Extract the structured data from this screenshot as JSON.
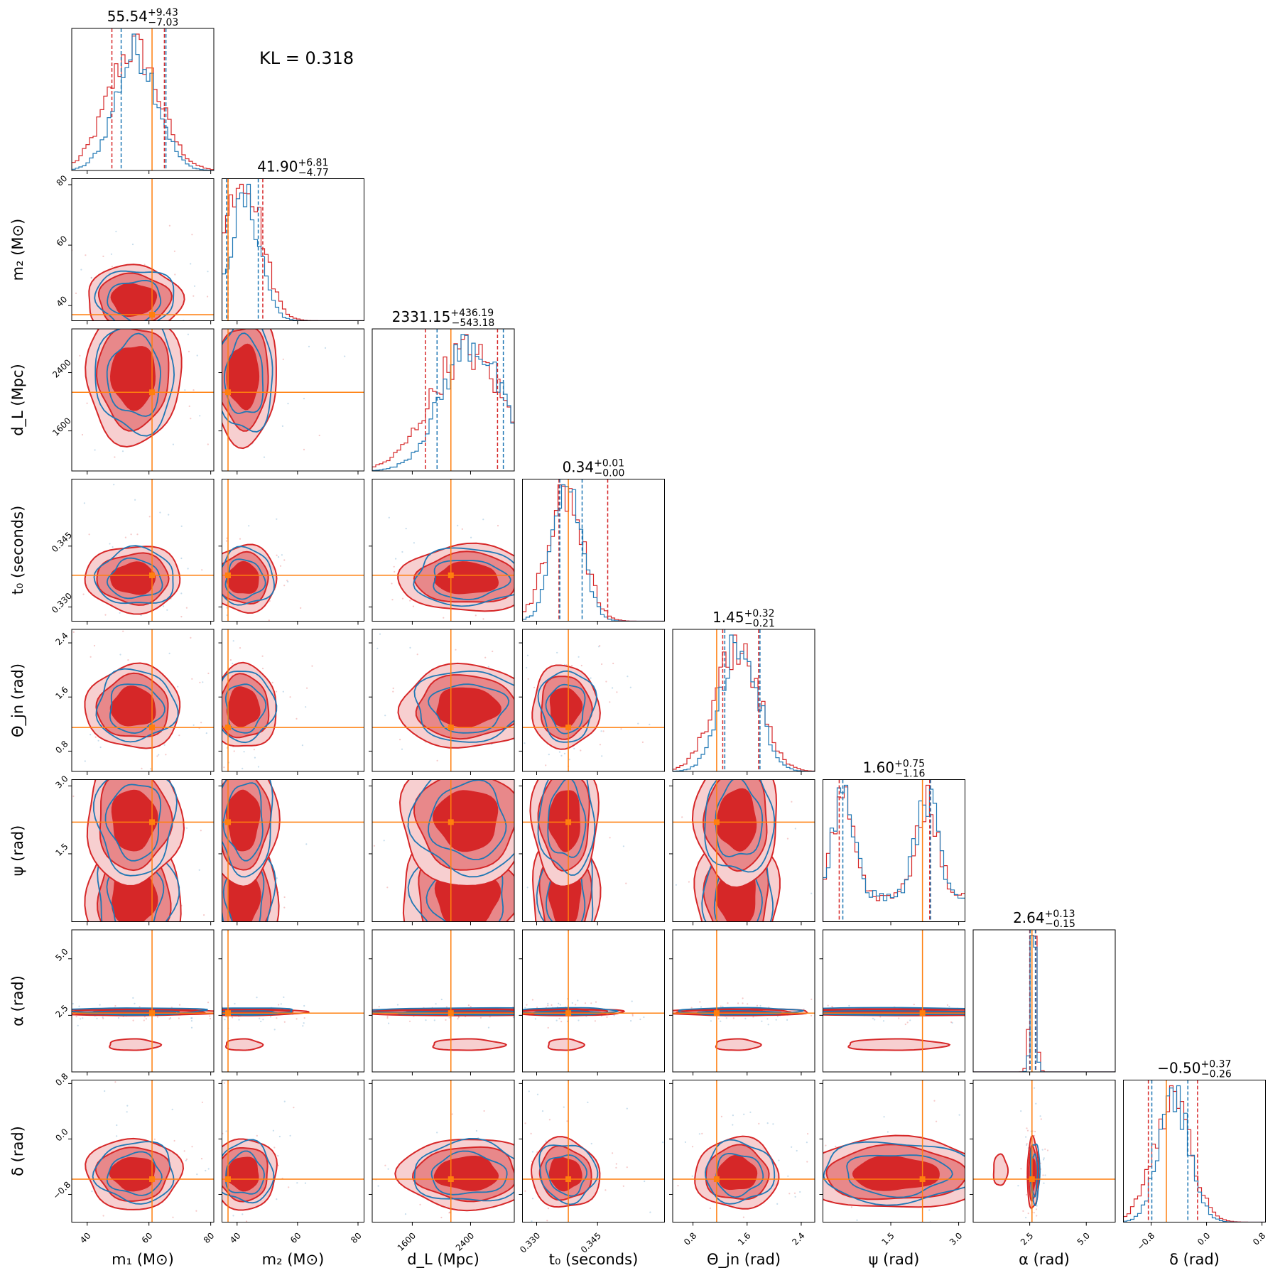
{
  "chart_data": {
    "type": "corner",
    "annotation": "KL = 0.318",
    "colors": {
      "model_a": "#d62728",
      "model_b": "#1f77b4",
      "truth": "#ff7f0e",
      "fill_dark": "#d62728",
      "fill_mid": "#e8888a",
      "fill_light": "#f7cfd0"
    },
    "parameters": [
      {
        "key": "m1",
        "label": "m₁ (M⊙)",
        "range": [
          35,
          81
        ],
        "ticks": [
          40,
          60,
          80
        ],
        "tick_labels": [
          "40",
          "60",
          "80"
        ],
        "truth": 61,
        "median": "55.54",
        "plus": "+9.43",
        "minus": "−7.03",
        "quantiles_a": [
          48,
          65
        ],
        "quantiles_b": [
          51,
          65.5
        ]
      },
      {
        "key": "m2",
        "label": "m₂ (M⊙)",
        "range": [
          35,
          82
        ],
        "ticks": [
          40,
          60,
          80
        ],
        "tick_labels": [
          "40",
          "60",
          "80"
        ],
        "truth": 37,
        "median": "41.90",
        "plus": "+6.81",
        "minus": "−4.77",
        "quantiles_a": [
          37,
          48.5
        ],
        "quantiles_b": [
          36.5,
          47
        ]
      },
      {
        "key": "dL",
        "label": "d_L (Mpc)",
        "range": [
          1050,
          3000
        ],
        "ticks": [
          1600,
          2400
        ],
        "tick_labels": [
          "1600",
          "2400"
        ],
        "truth": 2130,
        "median": "2331.15",
        "plus": "+436.19",
        "minus": "−543.18",
        "quantiles_a": [
          1780,
          2770
        ],
        "quantiles_b": [
          1940,
          2850
        ]
      },
      {
        "key": "t0",
        "label": "t₀ (seconds)",
        "range": [
          0.3265,
          0.3615
        ],
        "ticks": [
          0.33,
          0.345
        ],
        "tick_labels": [
          "0.330",
          "0.345"
        ],
        "truth": 0.3378,
        "median": "0.34",
        "plus": "+0.01",
        "minus": "−0.00",
        "quantiles_a": [
          0.3355,
          0.3475
        ],
        "quantiles_b": [
          0.3357,
          0.3412
        ]
      },
      {
        "key": "theta",
        "label": "Θ_jn (rad)",
        "range": [
          0.5,
          2.6
        ],
        "ticks": [
          0.8,
          1.6,
          2.4
        ],
        "tick_labels": [
          "0.8",
          "1.6",
          "2.4"
        ],
        "truth": 1.15,
        "median": "1.45",
        "plus": "+0.32",
        "minus": "−0.21",
        "quantiles_a": [
          1.24,
          1.77
        ],
        "quantiles_b": [
          1.27,
          1.79
        ]
      },
      {
        "key": "psi",
        "label": "ψ (rad)",
        "range": [
          0.0,
          3.14
        ],
        "ticks": [
          1.5,
          3.0
        ],
        "tick_labels": [
          "1.5",
          "3.0"
        ],
        "truth": 2.2,
        "median": "1.60",
        "plus": "+0.75",
        "minus": "−1.16",
        "quantiles_a": [
          0.36,
          2.36
        ],
        "quantiles_b": [
          0.44,
          2.38
        ]
      },
      {
        "key": "alpha",
        "label": "α (rad)",
        "range": [
          0.0,
          6.28
        ],
        "ticks": [
          2.5,
          5.0
        ],
        "tick_labels": [
          "2.5",
          "5.0"
        ],
        "truth": 2.6,
        "median": "2.64",
        "plus": "+0.13",
        "minus": "−0.15",
        "quantiles_a": [
          2.5,
          2.77
        ],
        "quantiles_b": [
          2.52,
          2.75
        ]
      },
      {
        "key": "delta",
        "label": "δ (rad)",
        "range": [
          -1.2,
          0.85
        ],
        "ticks": [
          -0.8,
          0.0,
          0.8
        ],
        "tick_labels": [
          "−0.8",
          "0.0",
          "0.8"
        ],
        "truth": -0.58,
        "median": "−0.50",
        "plus": "+0.37",
        "minus": "−0.26",
        "quantiles_a": [
          -0.84,
          -0.13
        ],
        "quantiles_b": [
          -0.79,
          -0.27
        ]
      }
    ]
  }
}
